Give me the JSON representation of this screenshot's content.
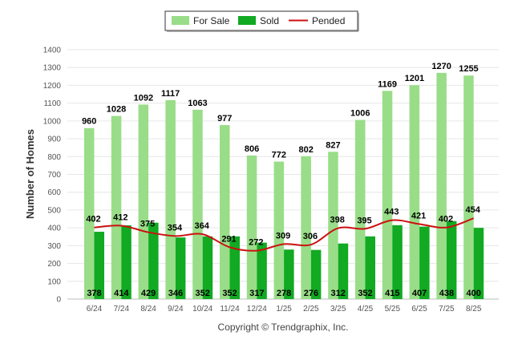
{
  "chart_data": {
    "type": "bar",
    "categories": [
      "6/24",
      "7/24",
      "8/24",
      "9/24",
      "10/24",
      "11/24",
      "12/24",
      "1/25",
      "2/25",
      "3/25",
      "4/25",
      "5/25",
      "6/25",
      "7/25",
      "8/25"
    ],
    "series": [
      {
        "name": "For Sale",
        "type": "bar",
        "color": "#99dd88",
        "values": [
          960,
          1028,
          1092,
          1117,
          1063,
          977,
          806,
          772,
          802,
          827,
          1006,
          1169,
          1201,
          1270,
          1255
        ]
      },
      {
        "name": "Sold",
        "type": "bar",
        "color": "#11aa22",
        "values": [
          378,
          414,
          429,
          346,
          352,
          352,
          317,
          278,
          276,
          312,
          352,
          415,
          407,
          438,
          400
        ]
      },
      {
        "name": "Pended",
        "type": "line",
        "color": "#cc1111",
        "values": [
          402,
          412,
          375,
          354,
          364,
          291,
          272,
          309,
          306,
          398,
          395,
          443,
          421,
          402,
          454
        ]
      }
    ],
    "ylabel": "Number of Homes",
    "xlabel": "",
    "ylim": [
      0,
      1400
    ],
    "yticks": [
      0,
      100,
      200,
      300,
      400,
      500,
      600,
      700,
      800,
      900,
      1000,
      1100,
      1200,
      1300,
      1400
    ],
    "grid": true,
    "legend_position": "top-center"
  },
  "footer": {
    "copyright": "Copyright © Trendgraphix, Inc."
  }
}
